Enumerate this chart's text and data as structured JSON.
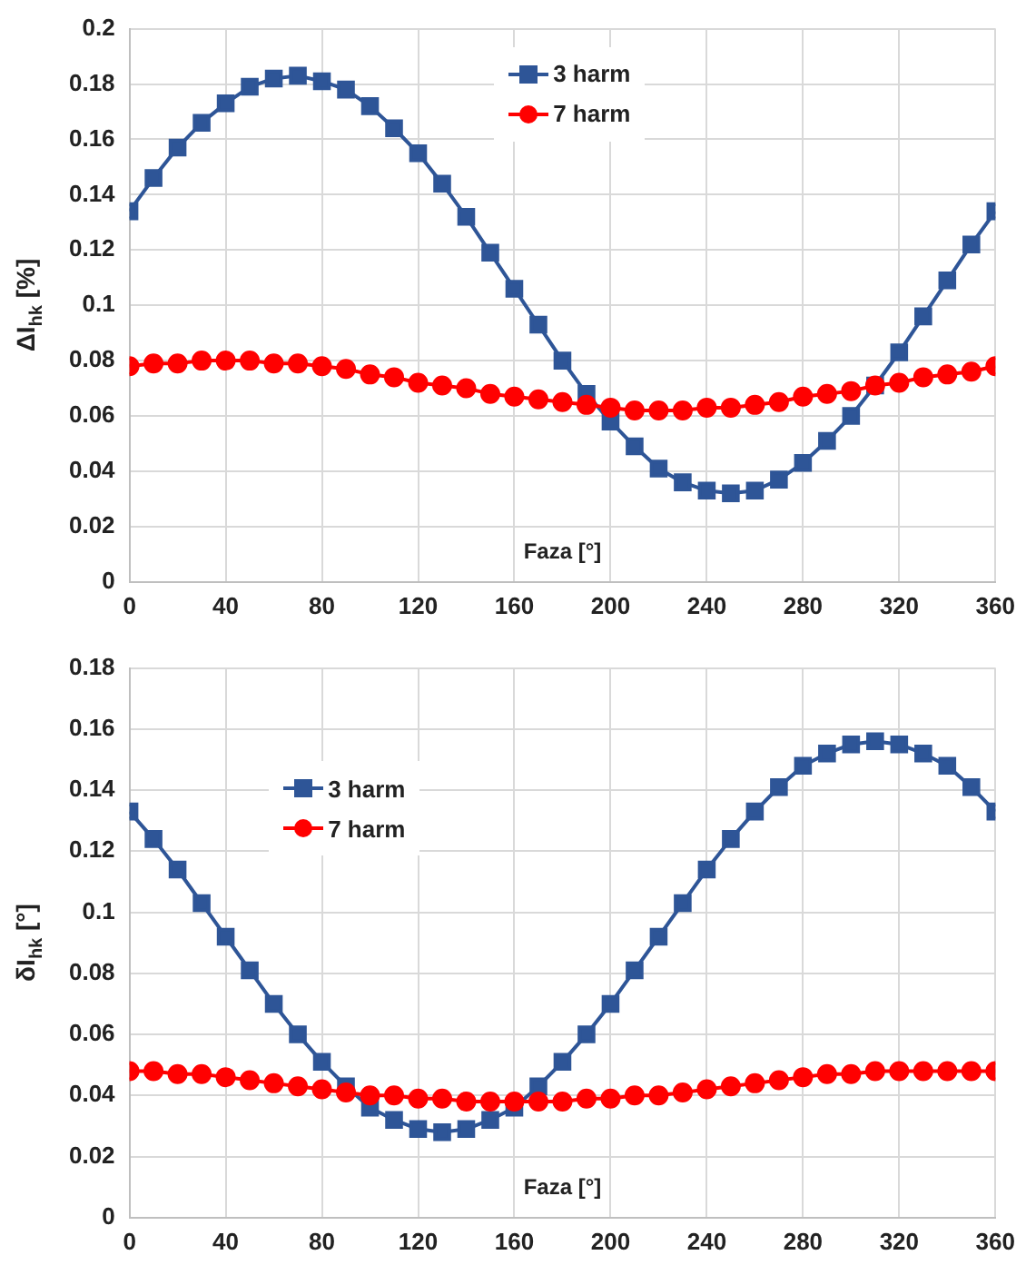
{
  "chart_data": [
    {
      "type": "line",
      "xlabel": "Faza [°]",
      "ylabel": "ΔI$_{hk}$ [%]",
      "x": [
        0,
        10,
        20,
        30,
        40,
        50,
        60,
        70,
        80,
        90,
        100,
        110,
        120,
        130,
        140,
        150,
        160,
        170,
        180,
        190,
        200,
        210,
        220,
        230,
        240,
        250,
        260,
        270,
        280,
        290,
        300,
        310,
        320,
        330,
        340,
        350,
        360
      ],
      "xlim": [
        0,
        360
      ],
      "xticks": [
        0,
        40,
        80,
        120,
        160,
        200,
        240,
        280,
        320,
        360
      ],
      "ylim": [
        0,
        0.2
      ],
      "yticks": [
        0,
        0.02,
        0.04,
        0.06,
        0.08,
        0.1,
        0.12,
        0.14,
        0.16,
        0.18,
        0.2
      ],
      "grid": true,
      "legend": "top",
      "line_style": "solid",
      "series": [
        {
          "name": "3 harm",
          "color": "#2e5597",
          "marker": "square",
          "values": [
            0.134,
            0.146,
            0.157,
            0.166,
            0.173,
            0.179,
            0.182,
            0.183,
            0.181,
            0.178,
            0.172,
            0.164,
            0.155,
            0.144,
            0.132,
            0.119,
            0.106,
            0.093,
            0.08,
            0.068,
            0.058,
            0.049,
            0.041,
            0.036,
            0.033,
            0.032,
            0.033,
            0.037,
            0.043,
            0.051,
            0.06,
            0.071,
            0.083,
            0.096,
            0.109,
            0.122,
            0.134
          ]
        },
        {
          "name": "7 harm",
          "color": "#ff0000",
          "marker": "circle",
          "values": [
            0.078,
            0.079,
            0.079,
            0.08,
            0.08,
            0.08,
            0.079,
            0.079,
            0.078,
            0.077,
            0.075,
            0.074,
            0.072,
            0.071,
            0.07,
            0.068,
            0.067,
            0.066,
            0.065,
            0.064,
            0.063,
            0.062,
            0.062,
            0.062,
            0.063,
            0.063,
            0.064,
            0.065,
            0.067,
            0.068,
            0.069,
            0.071,
            0.072,
            0.074,
            0.075,
            0.076,
            0.078
          ]
        }
      ]
    },
    {
      "type": "line",
      "xlabel": "Faza [°]",
      "ylabel": "δI$_{hk}$ [°]",
      "x": [
        0,
        10,
        20,
        30,
        40,
        50,
        60,
        70,
        80,
        90,
        100,
        110,
        120,
        130,
        140,
        150,
        160,
        170,
        180,
        190,
        200,
        210,
        220,
        230,
        240,
        250,
        260,
        270,
        280,
        290,
        300,
        310,
        320,
        330,
        340,
        350,
        360
      ],
      "xlim": [
        0,
        360
      ],
      "xticks": [
        0,
        40,
        80,
        120,
        160,
        200,
        240,
        280,
        320,
        360
      ],
      "ylim": [
        0,
        0.18
      ],
      "yticks": [
        0,
        0.02,
        0.04,
        0.06,
        0.08,
        0.1,
        0.12,
        0.14,
        0.16,
        0.18
      ],
      "grid": true,
      "legend": "left",
      "line_style": "solid",
      "series": [
        {
          "name": "3 harm",
          "color": "#2e5597",
          "marker": "square",
          "values": [
            0.133,
            0.124,
            0.114,
            0.103,
            0.092,
            0.081,
            0.07,
            0.06,
            0.051,
            0.043,
            0.036,
            0.032,
            0.029,
            0.028,
            0.029,
            0.032,
            0.036,
            0.043,
            0.051,
            0.06,
            0.07,
            0.081,
            0.092,
            0.103,
            0.114,
            0.124,
            0.133,
            0.141,
            0.148,
            0.152,
            0.155,
            0.156,
            0.155,
            0.152,
            0.148,
            0.141,
            0.133
          ]
        },
        {
          "name": "7 harm",
          "color": "#ff0000",
          "marker": "circle",
          "values": [
            0.048,
            0.048,
            0.047,
            0.047,
            0.046,
            0.045,
            0.044,
            0.043,
            0.042,
            0.041,
            0.04,
            0.04,
            0.039,
            0.039,
            0.038,
            0.038,
            0.038,
            0.038,
            0.038,
            0.039,
            0.039,
            0.04,
            0.04,
            0.041,
            0.042,
            0.043,
            0.044,
            0.045,
            0.046,
            0.047,
            0.047,
            0.048,
            0.048,
            0.048,
            0.048,
            0.048,
            0.048
          ]
        }
      ]
    }
  ]
}
